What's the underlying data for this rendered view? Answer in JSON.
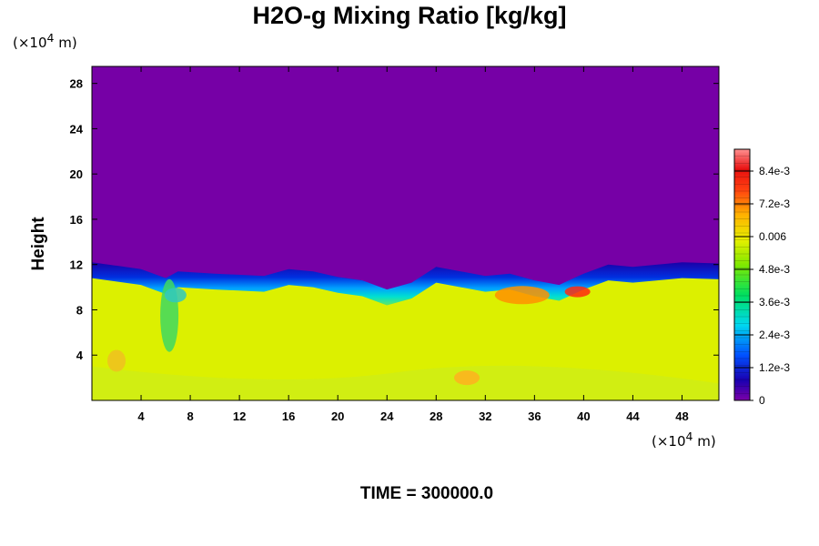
{
  "chart_data": {
    "type": "heatmap",
    "title": "H2O-g Mixing Ratio [kg/kg]",
    "ylabel": "Height",
    "x_unit_prefix": "(×10",
    "x_unit_exp": "4",
    "x_unit_suffix": " m)",
    "y_unit_prefix": "(×10",
    "y_unit_exp": "4",
    "y_unit_suffix": " m)",
    "xlim": [
      0,
      51
    ],
    "ylim": [
      0,
      29.5
    ],
    "x_ticks": [
      4,
      8,
      12,
      16,
      20,
      24,
      28,
      32,
      36,
      40,
      44,
      48
    ],
    "y_ticks": [
      4,
      8,
      12,
      16,
      20,
      24,
      28
    ],
    "colorbar": {
      "range": [
        0,
        0.0092
      ],
      "tick_values": [
        0,
        0.0012,
        0.0024,
        0.0036,
        0.0048,
        0.006,
        0.0072,
        0.0084
      ],
      "tick_labels": [
        "0",
        "1.2e-3",
        "2.4e-3",
        "3.6e-3",
        "4.8e-3",
        "0.006",
        "7.2e-3",
        "8.4e-3"
      ]
    },
    "tropopause_height": [
      [
        0,
        12.2
      ],
      [
        4,
        11.6
      ],
      [
        6,
        10.8
      ],
      [
        7,
        11.4
      ],
      [
        10,
        11.2
      ],
      [
        14,
        11.0
      ],
      [
        16,
        11.6
      ],
      [
        18,
        11.4
      ],
      [
        20,
        10.9
      ],
      [
        22,
        10.6
      ],
      [
        24,
        9.8
      ],
      [
        26,
        10.4
      ],
      [
        28,
        11.8
      ],
      [
        30,
        11.4
      ],
      [
        32,
        11.0
      ],
      [
        34,
        11.2
      ],
      [
        36,
        10.6
      ],
      [
        38,
        10.2
      ],
      [
        40,
        11.2
      ],
      [
        42,
        12.0
      ],
      [
        44,
        11.8
      ],
      [
        48,
        12.2
      ],
      [
        51,
        12.1
      ]
    ],
    "upper_value": 0,
    "lower_value": 0.0063,
    "annotation": "TIME = 300000.0"
  }
}
